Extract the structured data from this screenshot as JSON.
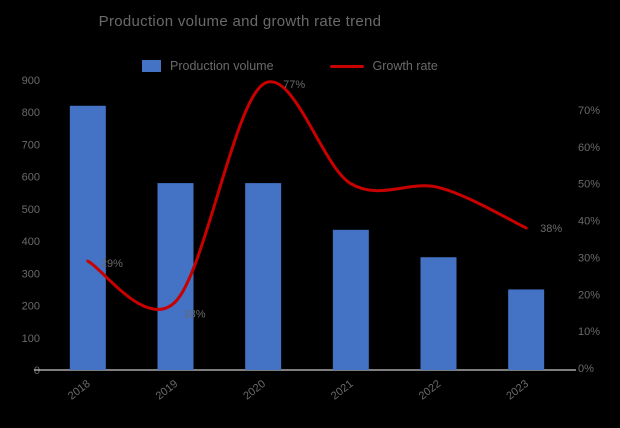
{
  "colors": {
    "background": "#000000",
    "text": "#6a6a6a",
    "axis_line": "#c9c9c9",
    "bar": "#4472C4",
    "line": "#C80000"
  },
  "chart_data": {
    "type": "combo-bar-line",
    "title": "Production volume and growth rate trend",
    "legend": [
      {
        "label": "Production volume",
        "marker": "bar-swatch-icon",
        "color": "#4472C4"
      },
      {
        "label": "Growth rate",
        "marker": "line-swatch-icon",
        "color": "#C80000"
      }
    ],
    "categories": [
      "2018",
      "2019",
      "2020",
      "2021",
      "2022",
      "2023"
    ],
    "bar_series": {
      "name": "Production volume",
      "axis": "left",
      "color": "#4472C4",
      "values": [
        820,
        580,
        580,
        435,
        350,
        250
      ]
    },
    "line_series": {
      "name": "Growth rate",
      "axis": "right",
      "color": "#C80000",
      "values": [
        29,
        18,
        77,
        50,
        49,
        38
      ],
      "unit": "%",
      "point_labels": [
        "29%",
        "18%",
        "77%",
        "50%",
        "49%",
        "38%"
      ],
      "labels_visible": [
        true,
        true,
        true,
        false,
        false,
        true
      ]
    },
    "left_axis": {
      "min": 0,
      "max": 900,
      "step": 100,
      "labels": [
        "900",
        "800",
        "700",
        "600",
        "500",
        "400",
        "300",
        "200",
        "100",
        "0"
      ]
    },
    "right_axis": {
      "min": 0,
      "max": 70,
      "step": 10,
      "labels": [
        "70%",
        "60%",
        "50%",
        "40%",
        "30%",
        "20%",
        "10%",
        "0%"
      ]
    },
    "grid": "off",
    "legend_position": "top"
  }
}
